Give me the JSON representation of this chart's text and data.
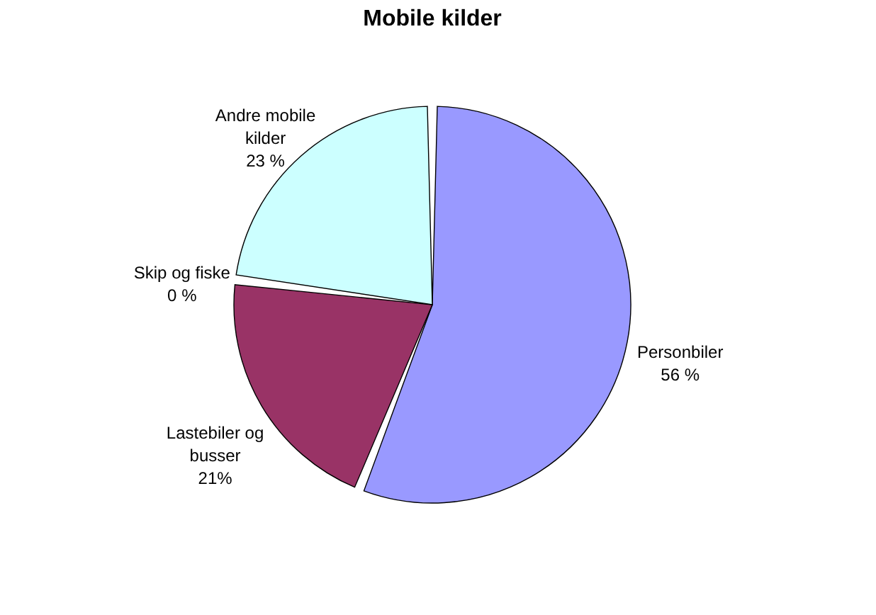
{
  "chart_data": {
    "type": "pie",
    "title": "Mobile kilder",
    "categories": [
      "Personbiler",
      "Lastebiler og busser",
      "Skip og fiske",
      "Andre mobile kilder"
    ],
    "values": [
      56,
      21,
      0,
      23
    ],
    "value_labels": [
      "56 %",
      "21%",
      "0 %",
      "23 %"
    ],
    "colors": [
      "#9999ff",
      "#993366",
      "#ffffcc",
      "#ccffff"
    ],
    "legend": false
  }
}
